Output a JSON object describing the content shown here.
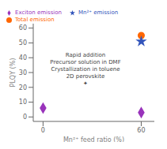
{
  "chart_data": {
    "type": "scatter",
    "xlabel": "Mn²⁺ feed ratio (%)",
    "ylabel": "PLQY (%)",
    "xlim": [
      -6,
      68
    ],
    "ylim": [
      -3,
      63
    ],
    "xticks": [
      0,
      60
    ],
    "yticks": [
      0,
      10,
      20,
      30,
      40,
      50,
      60
    ],
    "grid": false,
    "legend": "upper left",
    "series": [
      {
        "name": "Total emission",
        "color": "#FF6600",
        "marker": "circle",
        "x": [
          60
        ],
        "values": [
          55
        ]
      },
      {
        "name": "Mn²⁺ emission",
        "color": "#3355BB",
        "marker": "star",
        "x": [
          60
        ],
        "values": [
          51
        ]
      },
      {
        "name": "Exciton emission",
        "color": "#9933BB",
        "marker": "diamond",
        "x": [
          0,
          60
        ],
        "values": [
          6,
          3
        ]
      }
    ],
    "annotations": [
      "Rapid addition",
      "Precursor solution in DMF",
      "Crystallization in toluene",
      "2D perovskite",
      "✦"
    ]
  }
}
